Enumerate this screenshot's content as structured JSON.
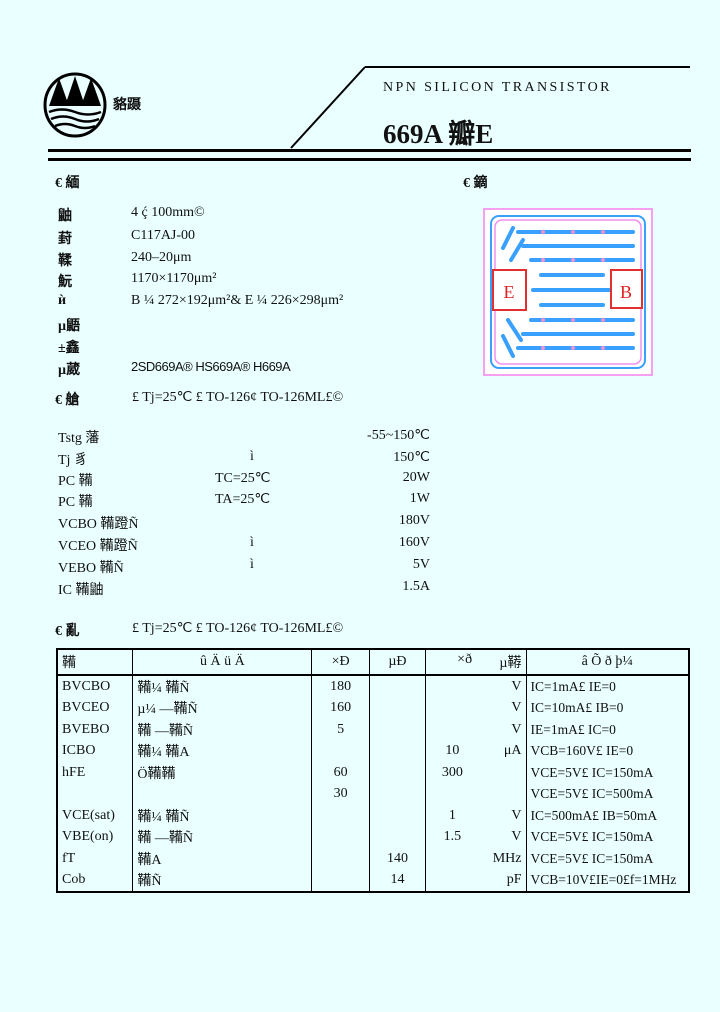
{
  "header": {
    "company": "貉蹑",
    "subtitle": "NPN  SILICON  TRANSISTOR",
    "part_title": "669A 瓣E"
  },
  "chip_info": {
    "heading": "€ 緬",
    "rows": [
      {
        "label": "鼬",
        "value": "4 ḉ    100mm©"
      },
      {
        "label": "葑",
        "value": "C117AJ-00"
      },
      {
        "label": "鞣",
        "value": "240–20μm"
      },
      {
        "label": "魭",
        "value": "1170×1170μm²"
      },
      {
        "label": "ѝ",
        "value": "B ¼ 272×192μm²& E ¼ 226×298μm²"
      },
      {
        "label": "µ鼯",
        "value": ""
      },
      {
        "label": "±鑫",
        "value": ""
      },
      {
        "label": "µ葳",
        "value": "2SD669A® HS669A® H669A"
      }
    ]
  },
  "die_view": {
    "heading": "€ 鏑",
    "emitter_label": "E",
    "base_label": "B"
  },
  "max_ratings": {
    "heading": "€ 艙",
    "condition": "£ Tj=25℃  £ TO-126¢ TO-126ML£©",
    "rows": [
      {
        "param": "Tstg 藩",
        "cond": "",
        "value": "-55~150℃"
      },
      {
        "param": "Tj 豸",
        "cond": "ì",
        "value": "150℃"
      },
      {
        "param": "PC 鞴",
        "cond": "TC=25℃",
        "value": "20W"
      },
      {
        "param": "PC 鞴",
        "cond": "TA=25℃",
        "value": "1W"
      },
      {
        "param": "VCBO 鞴蹬Ñ",
        "cond": "",
        "value": "180V"
      },
      {
        "param": "VCEO 鞴蹬Ñ",
        "cond": "ì",
        "value": "160V"
      },
      {
        "param": "VEBO 鞴Ñ",
        "cond": "ì",
        "value": "5V"
      },
      {
        "param": "IC 鞴鼬",
        "cond": "",
        "value": "1.5A"
      }
    ]
  },
  "electrical": {
    "heading": "€ 亂",
    "condition": "£ Tj=25℃  £ TO-126¢ TO-126ML£©",
    "columns": [
      "鞴",
      "û  Ä  ü  Ä",
      "×Ð",
      "µÐ",
      "×ð",
      "µ鞯",
      "â  Õ  ð  þ¼"
    ],
    "rows": [
      {
        "sym": "BVCBO",
        "name": "鞴¼      鞴Ñ",
        "min": "180",
        "typ": "",
        "max": "",
        "unit": "V",
        "cond": "IC=1mA£ IE=0"
      },
      {
        "sym": "BVCEO",
        "name": "µ¼     —鞴Ñ",
        "min": "160",
        "typ": "",
        "max": "",
        "unit": "V",
        "cond": "IC=10mA£ IB=0"
      },
      {
        "sym": "BVEBO",
        "name": "鞴     —鞴Ñ",
        "min": "5",
        "typ": "",
        "max": "",
        "unit": "V",
        "cond": "IE=1mA£ IC=0"
      },
      {
        "sym": "ICBO",
        "name": "鞴¼      鞴A",
        "min": "",
        "typ": "",
        "max": "10",
        "unit": "μA",
        "cond": "VCB=160V£ IE=0"
      },
      {
        "sym": "hFE",
        "name": "Ö鞴鞴",
        "min": "60",
        "typ": "",
        "max": "300",
        "unit": "",
        "cond": "VCE=5V£ IC=150mA"
      },
      {
        "sym": "",
        "name": "",
        "min": "30",
        "typ": "",
        "max": "",
        "unit": "",
        "cond": "VCE=5V£ IC=500mA"
      },
      {
        "sym": "VCE(sat)",
        "name": "鞴¼      鞴Ñ",
        "min": "",
        "typ": "",
        "max": "1",
        "unit": "V",
        "cond": "IC=500mA£ IB=50mA"
      },
      {
        "sym": "VBE(on)",
        "name": "鞴     —鞴Ñ",
        "min": "",
        "typ": "",
        "max": "1.5",
        "unit": "V",
        "cond": "VCE=5V£ IC=150mA"
      },
      {
        "sym": "fT",
        "name": "鞴A",
        "min": "",
        "typ": "140",
        "max": "",
        "unit": "MHz",
        "cond": "VCE=5V£ IC=150mA"
      },
      {
        "sym": "Cob",
        "name": "鞴Ñ",
        "min": "",
        "typ": "14",
        "max": "",
        "unit": "pF",
        "cond": "VCB=10V£IE=0£f=1MHz"
      }
    ]
  }
}
